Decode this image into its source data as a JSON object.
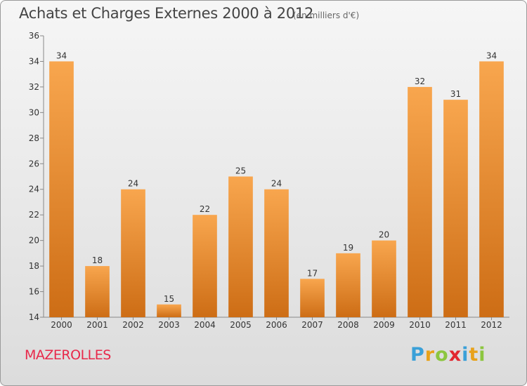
{
  "title": "Achats et Charges Externes 2000 à 2012",
  "subtitle": "(en milliers d'€)",
  "commune": "MAZEROLLES",
  "logo": {
    "letters": [
      "P",
      "r",
      "o",
      "x",
      "i",
      "t",
      "i"
    ],
    "colors": [
      "#3aa0d8",
      "#e8a21a",
      "#8cc63f",
      "#e2262f",
      "#3aa0d8",
      "#e8a21a",
      "#8cc63f"
    ]
  },
  "colors": {
    "bar_top": "#f8a64e",
    "bar_bottom": "#cd6d15",
    "title": "#444444",
    "commune": "#e8284a"
  },
  "chart_data": {
    "type": "bar",
    "categories": [
      "2000",
      "2001",
      "2002",
      "2003",
      "2004",
      "2005",
      "2006",
      "2007",
      "2008",
      "2009",
      "2010",
      "2011",
      "2012"
    ],
    "values": [
      34,
      18,
      24,
      15,
      22,
      25,
      24,
      17,
      19,
      20,
      32,
      31,
      34
    ],
    "ylim": [
      14,
      36
    ],
    "yticks": [
      14,
      16,
      18,
      20,
      22,
      24,
      26,
      28,
      30,
      32,
      34,
      36
    ],
    "grid": false,
    "data_labels": true
  }
}
